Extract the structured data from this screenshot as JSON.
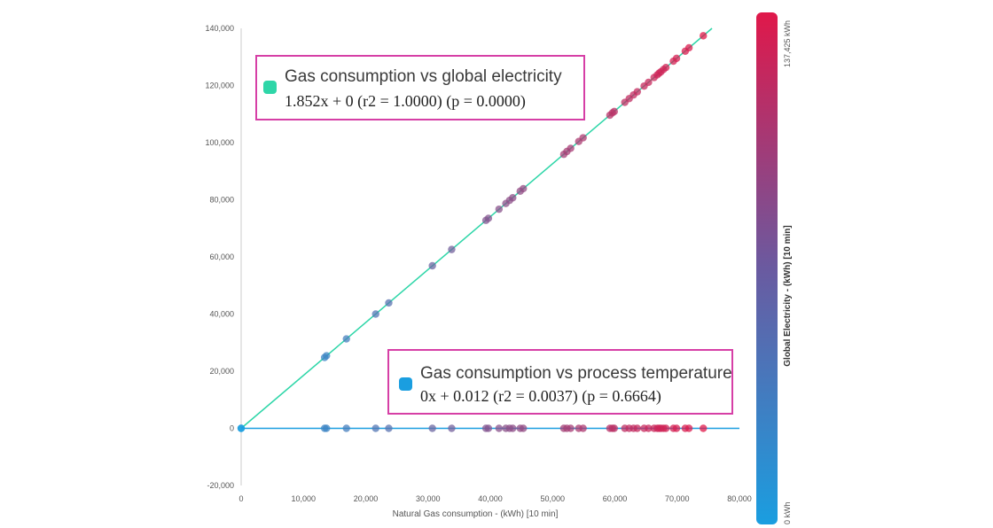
{
  "chart_data": {
    "type": "scatter",
    "xlabel": "Natural Gas consumption -  (kWh) [10 min]",
    "ylabel": "",
    "xlim": [
      0,
      80000
    ],
    "ylim": [
      -20000,
      140000
    ],
    "x_ticks": [
      0,
      10000,
      20000,
      30000,
      40000,
      50000,
      60000,
      70000,
      80000
    ],
    "x_tick_labels": [
      "0",
      "10,000",
      "20,000",
      "30,000",
      "40,000",
      "50,000",
      "60,000",
      "70,000",
      "80,000"
    ],
    "y_ticks": [
      -20000,
      0,
      20000,
      40000,
      60000,
      80000,
      100000,
      120000,
      140000
    ],
    "y_tick_labels": [
      "-20,000",
      "0",
      "20,000",
      "40,000",
      "60,000",
      "80,000",
      "100,000",
      "120,000",
      "140,000"
    ],
    "grid": false,
    "colorbar": {
      "title": "Global Electricity -  (kWh) [10 min]",
      "min_label": "0 kWh",
      "max_label": "137,425 kWh",
      "min_color": "#1a9ee0",
      "max_color": "#e0184a"
    },
    "series": [
      {
        "color": "#2ed6a8",
        "fit_slope": 1.852,
        "fit_intercept": 0,
        "x": [
          0,
          13400,
          13700,
          16900,
          21600,
          23700,
          30700,
          33800,
          39300,
          39700,
          41400,
          42500,
          43100,
          43600,
          44800,
          45300,
          51800,
          52300,
          52900,
          54200,
          54900,
          59200,
          59600,
          59900,
          61600,
          62300,
          63000,
          63600,
          64700,
          65400,
          66300,
          66800,
          67100,
          67400,
          67800,
          68200,
          69400,
          69900,
          71300,
          71900,
          74200
        ],
        "y": [
          0,
          24800,
          25400,
          31300,
          40000,
          43900,
          56900,
          62600,
          72800,
          73500,
          76700,
          78700,
          79800,
          80700,
          83000,
          83900,
          95900,
          96900,
          98000,
          100400,
          101700,
          109600,
          110400,
          110900,
          114100,
          115400,
          116700,
          117800,
          119800,
          121100,
          122800,
          123700,
          124300,
          124800,
          125600,
          126300,
          128500,
          129500,
          132000,
          133200,
          137400
        ]
      },
      {
        "color": "#1a9ee0",
        "fit_slope": 0,
        "fit_intercept": 0.012,
        "x": [
          0,
          13400,
          13700,
          16900,
          21600,
          23700,
          30700,
          33800,
          39300,
          39700,
          41400,
          42500,
          43100,
          43600,
          44800,
          45300,
          51800,
          52300,
          52900,
          54200,
          54900,
          59200,
          59600,
          59900,
          61600,
          62300,
          63000,
          63600,
          64700,
          65400,
          66300,
          66800,
          67100,
          67400,
          67800,
          68200,
          69400,
          69900,
          71300,
          71900,
          74200
        ],
        "y": [
          0,
          0,
          0,
          0,
          0,
          0,
          0,
          0,
          0,
          0,
          0,
          0,
          0,
          0,
          0,
          0,
          0,
          0,
          0,
          0,
          0,
          0,
          0,
          0,
          0,
          0,
          0,
          0,
          0,
          0,
          0,
          0,
          0,
          0,
          0,
          0,
          0,
          0,
          0,
          0,
          0
        ]
      }
    ],
    "annotations": [
      {
        "title": "Gas consumption vs global electricity",
        "equation": "1.852x + 0 (r2 = 1.0000) (p = 0.0000)",
        "marker_color": "#2ed6a8",
        "border_color": "#d63fa6"
      },
      {
        "title": "Gas consumption vs process temperature",
        "equation": "0x + 0.012 (r2 = 0.0037) (p = 0.6664)",
        "marker_color": "#1a9ee0",
        "border_color": "#d63fa6"
      }
    ]
  }
}
